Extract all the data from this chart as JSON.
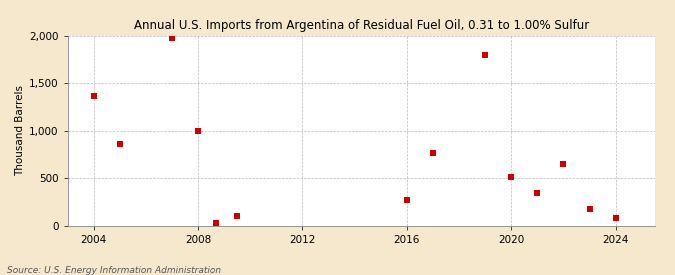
{
  "title": "Annual U.S. Imports from Argentina of Residual Fuel Oil, 0.31 to 1.00% Sulfur",
  "ylabel": "Thousand Barrels",
  "source": "Source: U.S. Energy Information Administration",
  "background_color": "#f5e8cc",
  "plot_background_color": "#ffffff",
  "marker_color": "#cc0000",
  "marker": "s",
  "marker_size": 4,
  "xlim": [
    2003.0,
    2025.5
  ],
  "ylim": [
    0,
    2000
  ],
  "yticks": [
    0,
    500,
    1000,
    1500,
    2000
  ],
  "xticks": [
    2004,
    2008,
    2012,
    2016,
    2020,
    2024
  ],
  "data": [
    {
      "year": 2004,
      "value": 1370
    },
    {
      "year": 2005,
      "value": 855
    },
    {
      "year": 2007,
      "value": 1980
    },
    {
      "year": 2008,
      "value": 1000
    },
    {
      "year": 2008.7,
      "value": 30
    },
    {
      "year": 2009.5,
      "value": 100
    },
    {
      "year": 2016,
      "value": 265
    },
    {
      "year": 2017,
      "value": 760
    },
    {
      "year": 2019,
      "value": 1795
    },
    {
      "year": 2020,
      "value": 510
    },
    {
      "year": 2021,
      "value": 345
    },
    {
      "year": 2022,
      "value": 650
    },
    {
      "year": 2023,
      "value": 175
    },
    {
      "year": 2024,
      "value": 75
    }
  ]
}
